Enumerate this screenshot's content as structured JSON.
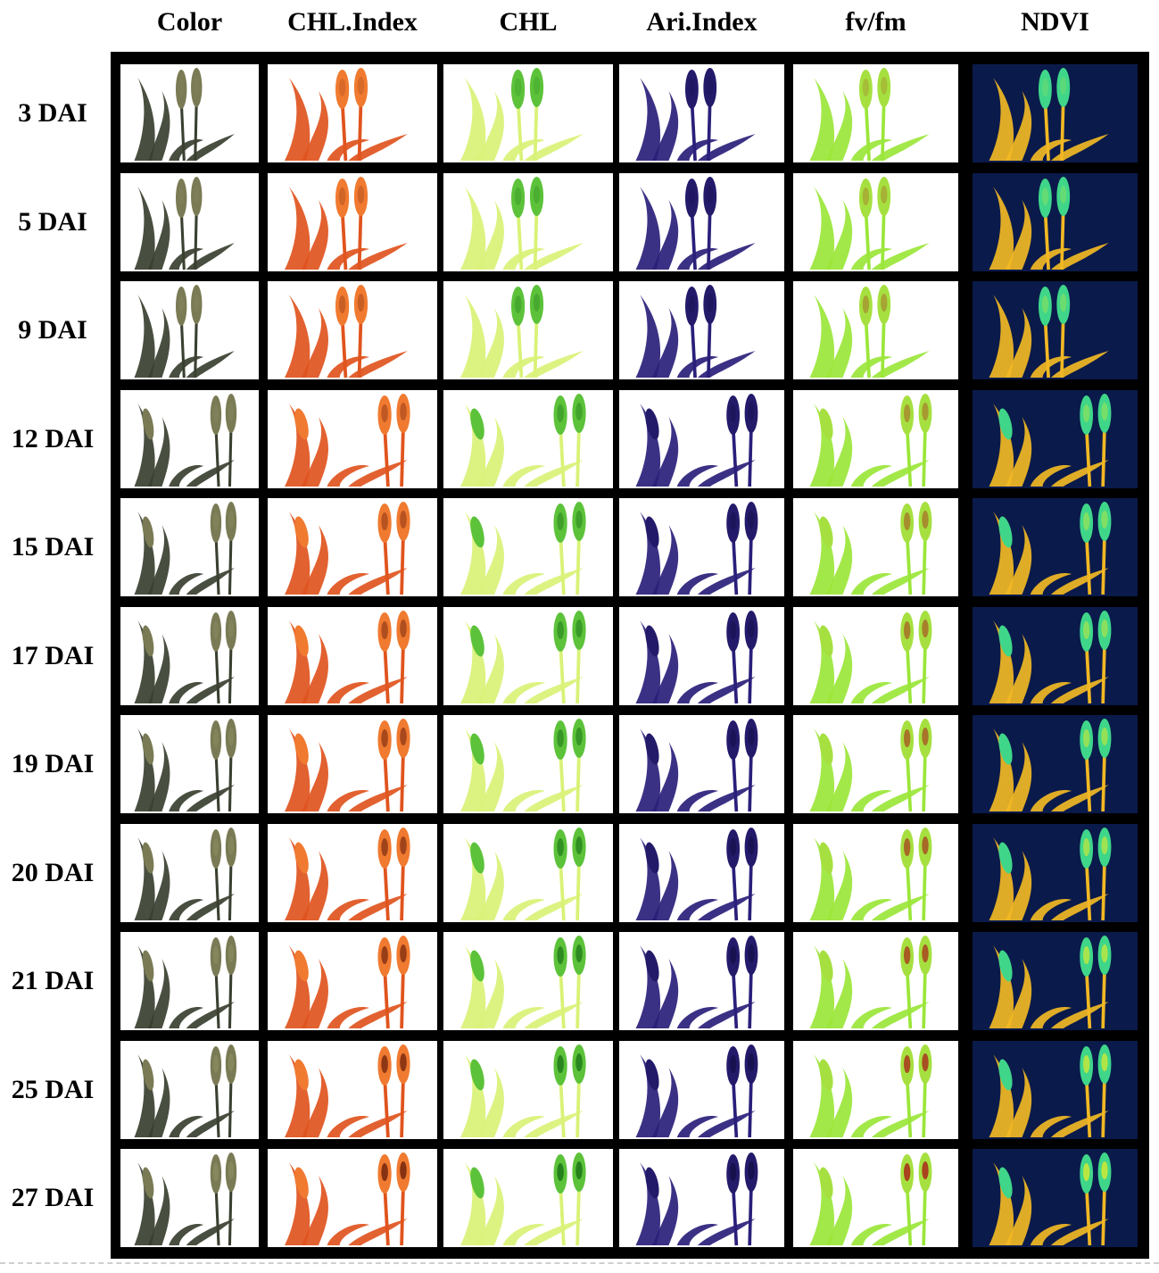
{
  "columns": [
    {
      "label": "Color",
      "key": "color",
      "plant": "#3a4030",
      "head": "#7a7a55",
      "accent": "#8a8a60"
    },
    {
      "label": "CHL.Index",
      "key": "chl-index",
      "plant": "#e0541e",
      "head": "#f07a30",
      "accent": "#7a2a10"
    },
    {
      "label": "CHL",
      "key": "chl",
      "plant": "#d9f277",
      "head": "#5cc23a",
      "accent": "#1f7a1a"
    },
    {
      "label": "Ari.Index",
      "key": "ari-index",
      "plant": "#2a1f7a",
      "head": "#241a6a",
      "accent": "#15104a"
    },
    {
      "label": "fv/fm",
      "key": "fv-fm",
      "plant": "#9be63a",
      "head": "#a6e040",
      "accent": "#a8321a"
    },
    {
      "label": "NDVI",
      "key": "ndvi",
      "plant": "#f2b824",
      "head": "#3fd68a",
      "accent": "#c8e83a",
      "background": "#0a1a4a"
    }
  ],
  "rows": [
    {
      "label": "3 DAI"
    },
    {
      "label": "5 DAI"
    },
    {
      "label": "9 DAI"
    },
    {
      "label": "12 DAI"
    },
    {
      "label": "15 DAI"
    },
    {
      "label": "17 DAI"
    },
    {
      "label": "19 DAI"
    },
    {
      "label": "20 DAI"
    },
    {
      "label": "21 DAI"
    },
    {
      "label": "25 DAI"
    },
    {
      "label": "27 DAI"
    }
  ]
}
